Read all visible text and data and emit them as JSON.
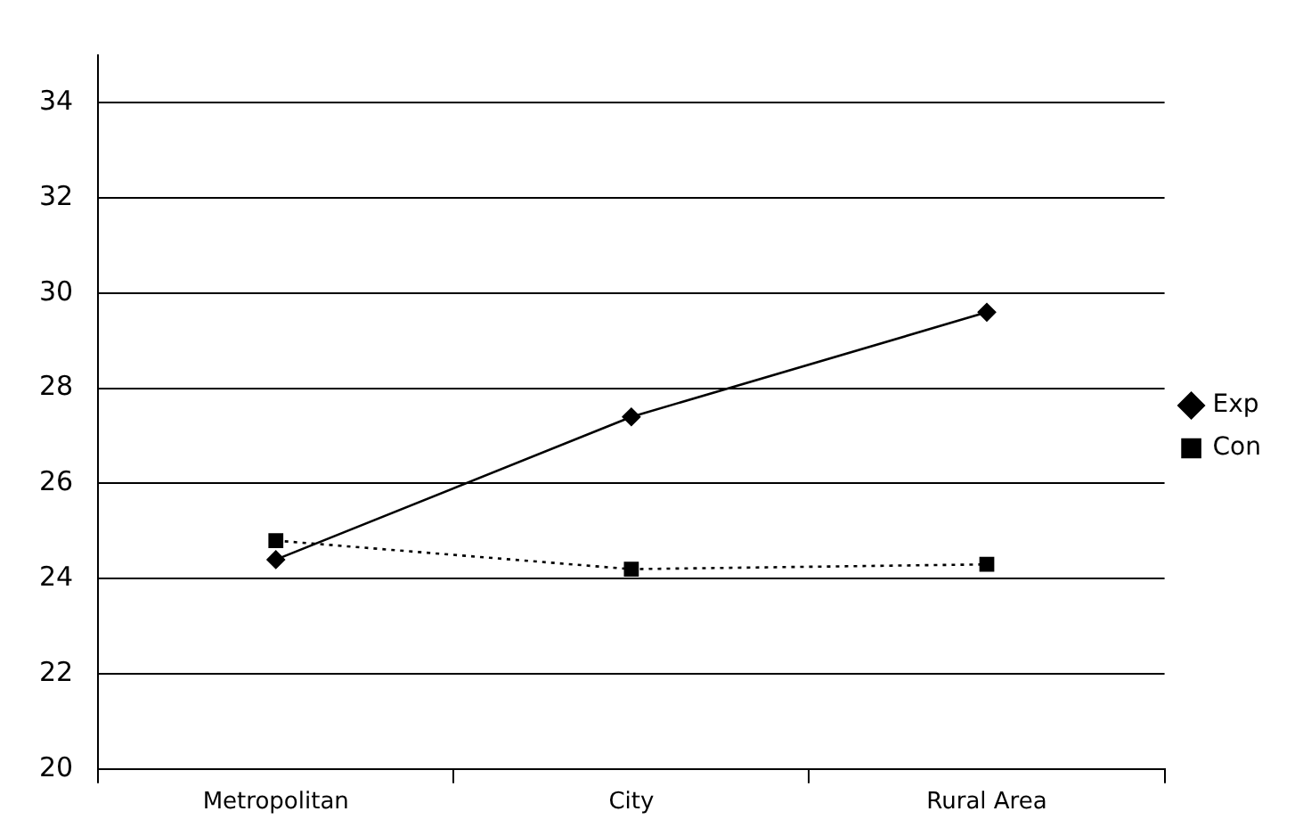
{
  "chart_data": {
    "type": "line",
    "categories": [
      "Metropolitan",
      "City",
      "Rural Area"
    ],
    "series": [
      {
        "name": "Exp",
        "color": "#000000",
        "values": [
          24.4,
          27.4,
          29.6
        ],
        "marker": "diamond",
        "line_style": "solid"
      },
      {
        "name": "Con",
        "color": "#000000",
        "values": [
          24.8,
          24.2,
          24.3
        ],
        "marker": "square",
        "line_style": "dotted"
      }
    ],
    "ylim": [
      20,
      35
    ],
    "yticks": [
      20,
      22,
      24,
      26,
      28,
      30,
      32,
      34
    ],
    "grid": "y",
    "legend": "right"
  }
}
